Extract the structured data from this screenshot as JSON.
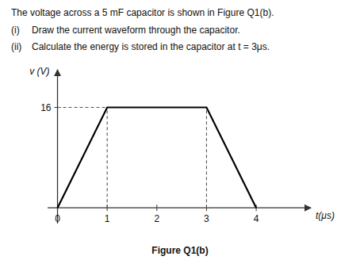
{
  "chart_data": {
    "type": "line",
    "title": "The voltage across a 5 mF capacitor is shown in Figure Q1(b).",
    "annotations": [
      "(i)",
      "Draw the current waveform through the capacitor.",
      "(ii)",
      "Calculate the energy is stored in the capacitor at t = 3μs.",
      "Figure Q1(b)"
    ],
    "x_label": "t(μs)",
    "y_label": "v (V)",
    "x": [
      0,
      1,
      3,
      4
    ],
    "values": [
      0,
      16,
      16,
      0
    ],
    "color": "#000000",
    "line_style": "solid",
    "xlim": [
      -0.2,
      5.1
    ],
    "ylim": [
      -2.5,
      22
    ],
    "xticks": [
      0,
      1,
      2,
      3,
      4
    ],
    "yticks": [
      16
    ],
    "grid": false
  }
}
